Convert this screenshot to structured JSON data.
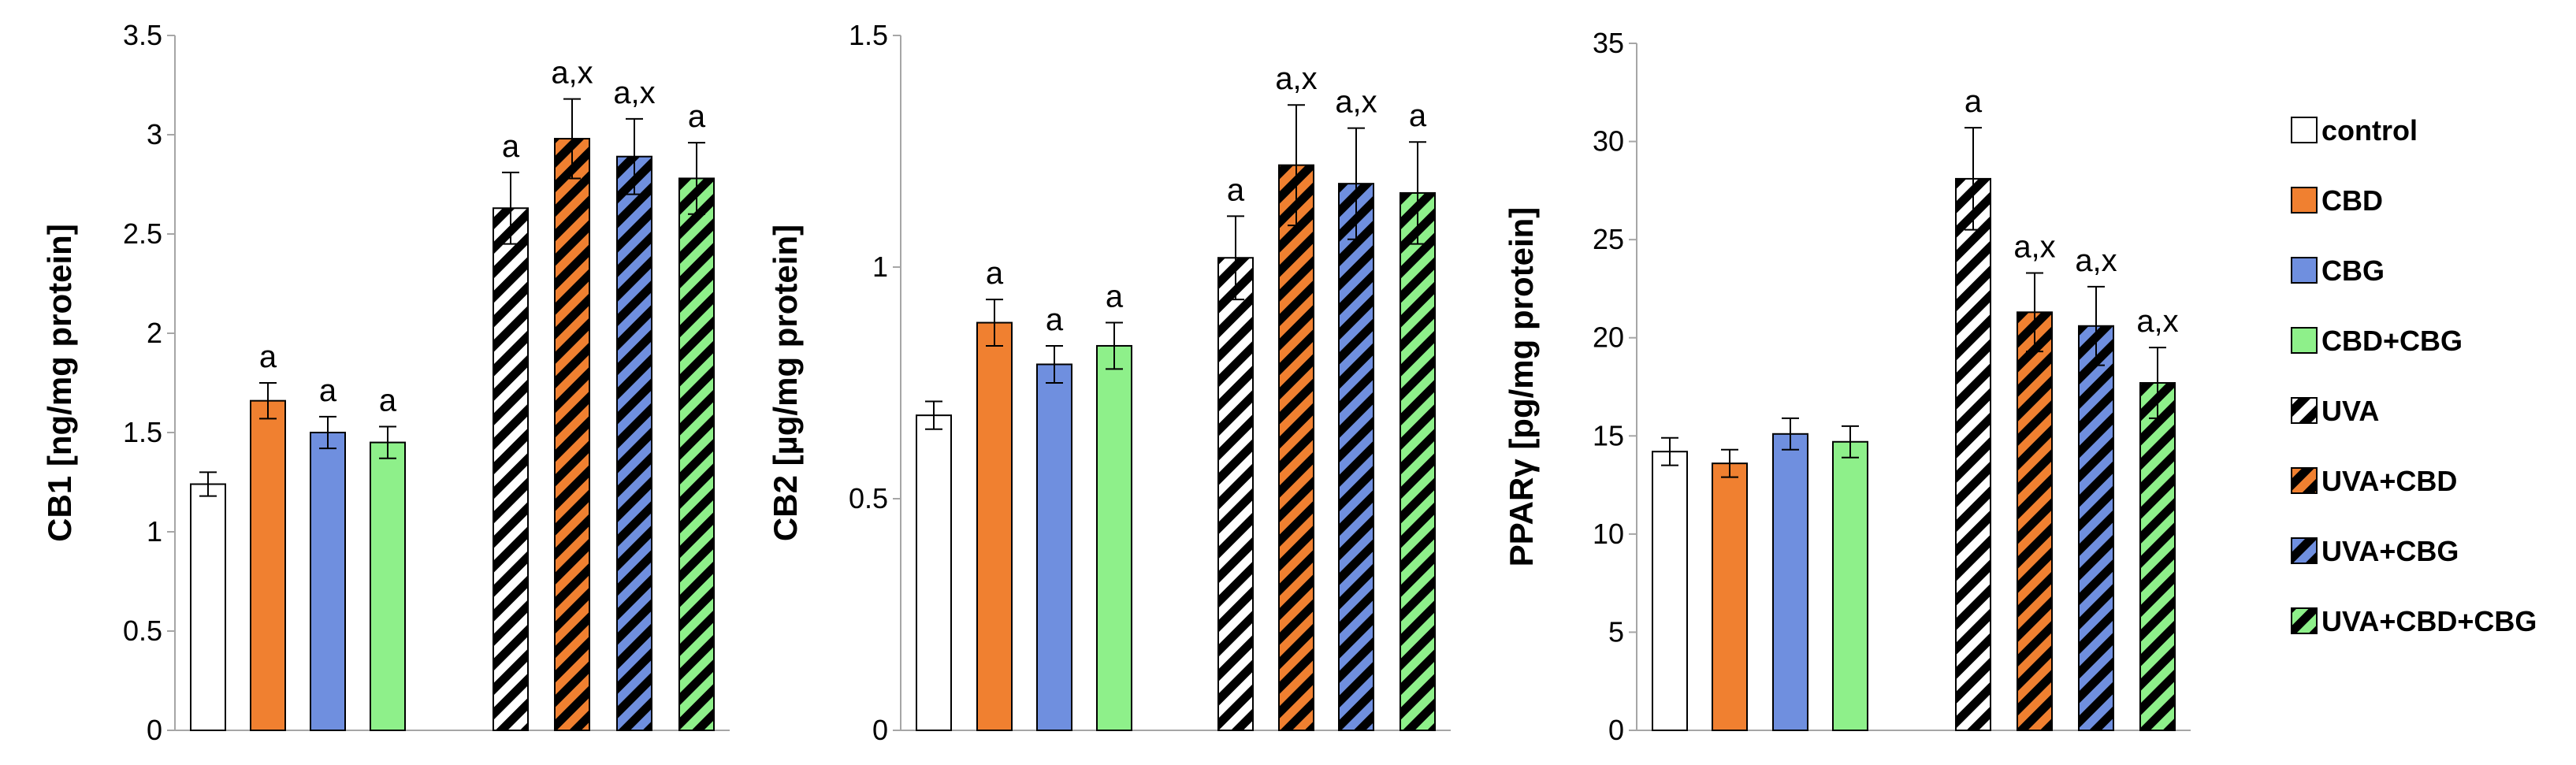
{
  "colors": {
    "control": "#ffffff",
    "CBD": "#f08030",
    "CBG": "#6f8fdf",
    "CBD+CBG": "#8ef08a",
    "outline": "#000000"
  },
  "legend": {
    "placement": "right",
    "items": [
      {
        "label": "control",
        "color": "#ffffff",
        "hatched": false
      },
      {
        "label": "CBD",
        "color": "#f08030",
        "hatched": false
      },
      {
        "label": "CBG",
        "color": "#6f8fdf",
        "hatched": false
      },
      {
        "label": "CBD+CBG",
        "color": "#8ef08a",
        "hatched": false
      },
      {
        "label": "UVA",
        "color": "#ffffff",
        "hatched": true
      },
      {
        "label": "UVA+CBD",
        "color": "#f08030",
        "hatched": true
      },
      {
        "label": "UVA+CBG",
        "color": "#6f8fdf",
        "hatched": true
      },
      {
        "label": "UVA+CBD+CBG",
        "color": "#8ef08a",
        "hatched": true
      }
    ]
  },
  "chart_data": [
    {
      "type": "bar",
      "ylabel": "CB1 [ng/mg protein]",
      "ylim": [
        0,
        3.5
      ],
      "yticks": [
        "0",
        "0.5",
        "1",
        "1.5",
        "2",
        "2.5",
        "3",
        "3.5"
      ],
      "grid": false,
      "categories": [
        "control",
        "CBD",
        "CBG",
        "CBD+CBG",
        "UVA",
        "UVA+CBD",
        "UVA+CBG",
        "UVA+CBD+CBG"
      ],
      "values": [
        1.24,
        1.66,
        1.5,
        1.45,
        2.63,
        2.98,
        2.89,
        2.78
      ],
      "errors": [
        0.06,
        0.09,
        0.08,
        0.08,
        0.18,
        0.2,
        0.19,
        0.18
      ],
      "annotations": [
        "",
        "a",
        "a",
        "a",
        "a",
        "a,x",
        "a,x",
        "a"
      ]
    },
    {
      "type": "bar",
      "ylabel": "CB2 [µg/mg protein]",
      "ylim": [
        0,
        1.5
      ],
      "yticks": [
        "0",
        "0.5",
        "1",
        "1.5"
      ],
      "grid": false,
      "categories": [
        "control",
        "CBD",
        "CBG",
        "CBD+CBG",
        "UVA",
        "UVA+CBD",
        "UVA+CBG",
        "UVA+CBD+CBG"
      ],
      "values": [
        0.68,
        0.88,
        0.79,
        0.83,
        1.02,
        1.22,
        1.18,
        1.16
      ],
      "errors": [
        0.03,
        0.05,
        0.04,
        0.05,
        0.09,
        0.13,
        0.12,
        0.11
      ],
      "annotations": [
        "",
        "a",
        "a",
        "a",
        "a",
        "a,x",
        "a,x",
        "a"
      ]
    },
    {
      "type": "bar",
      "ylabel": "PPARγ [pg/mg protein]",
      "ylim": [
        0,
        35
      ],
      "yticks": [
        "0",
        "5",
        "10",
        "15",
        "20",
        "25",
        "30",
        "35"
      ],
      "grid": false,
      "categories": [
        "control",
        "CBD",
        "CBG",
        "CBD+CBG",
        "UVA",
        "UVA+CBD",
        "UVA+CBG",
        "UVA+CBD+CBG"
      ],
      "values": [
        14.2,
        13.6,
        15.1,
        14.7,
        28.1,
        21.3,
        20.6,
        17.7
      ],
      "errors": [
        0.7,
        0.7,
        0.8,
        0.8,
        2.6,
        2.0,
        2.0,
        1.8
      ],
      "annotations": [
        "",
        "",
        "",
        "",
        "a",
        "a,x",
        "a,x",
        "a,x"
      ]
    }
  ]
}
